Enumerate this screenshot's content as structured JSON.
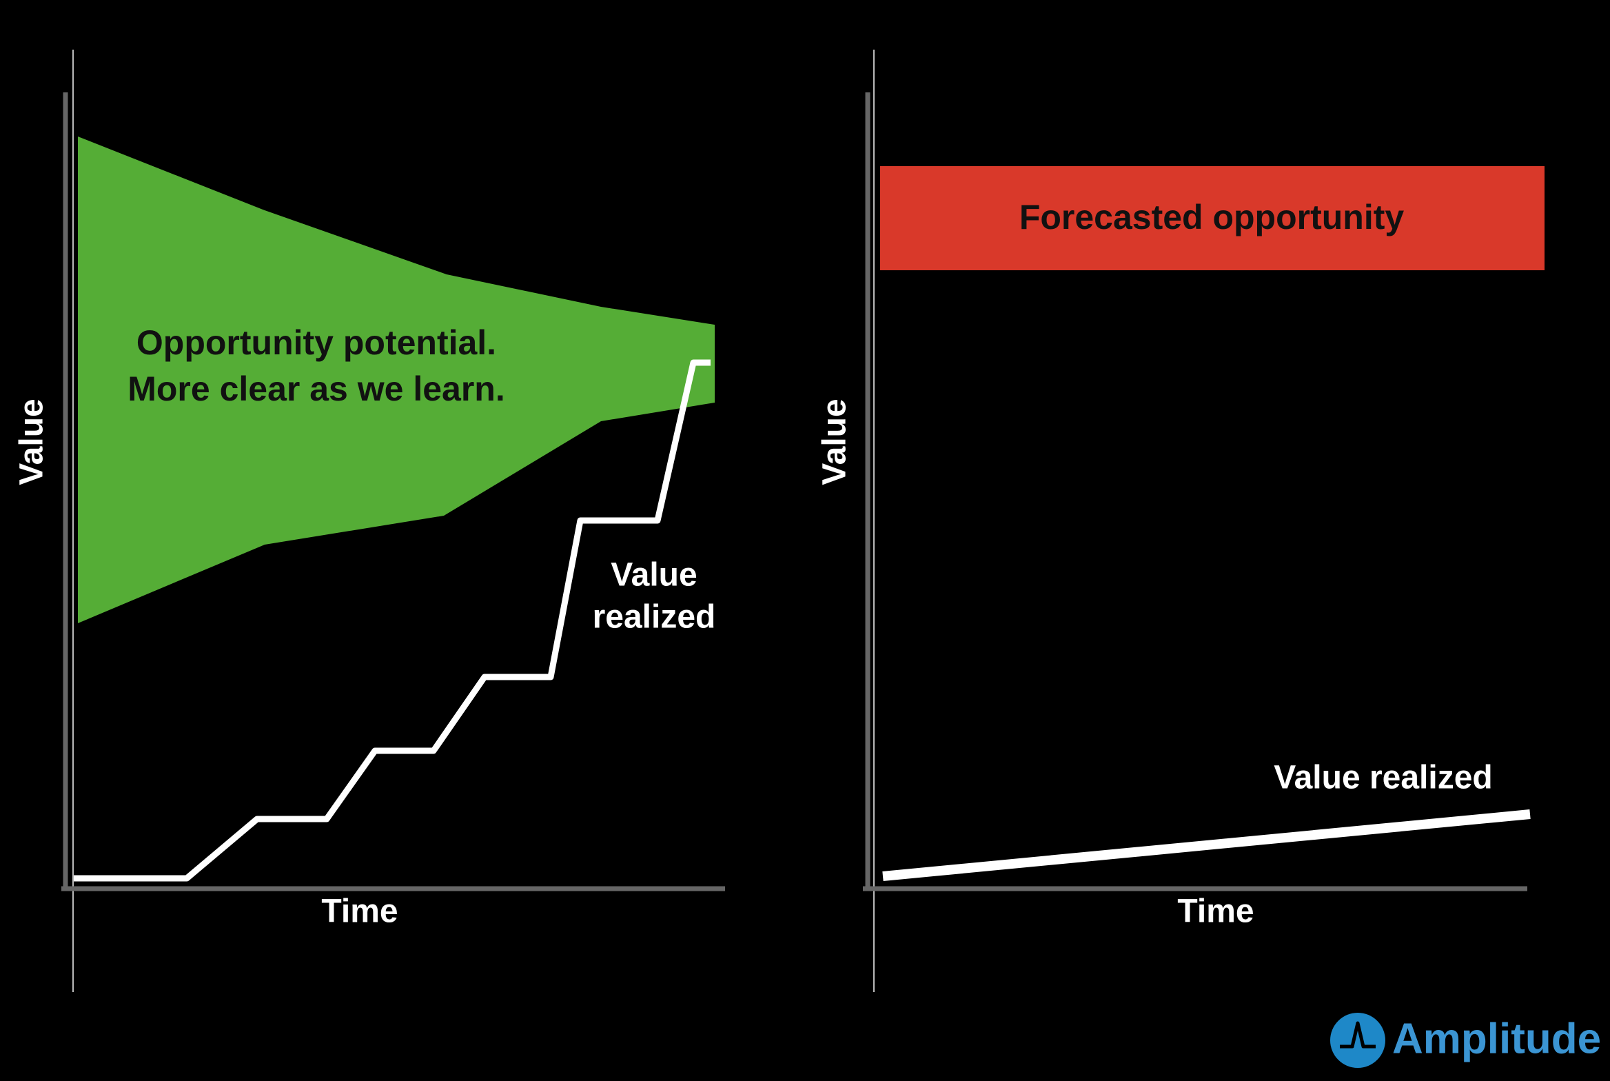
{
  "left_panel": {
    "axis_y": "Value",
    "axis_x": "Time",
    "area_label": [
      "Opportunity potential.",
      "More clear as we learn."
    ],
    "line_label": [
      "Value",
      "realized"
    ]
  },
  "right_panel": {
    "axis_y": "Value",
    "axis_x": "Time",
    "box_label": "Forecasted opportunity",
    "line_label": "Value realized"
  },
  "brand": "Amplitude"
}
